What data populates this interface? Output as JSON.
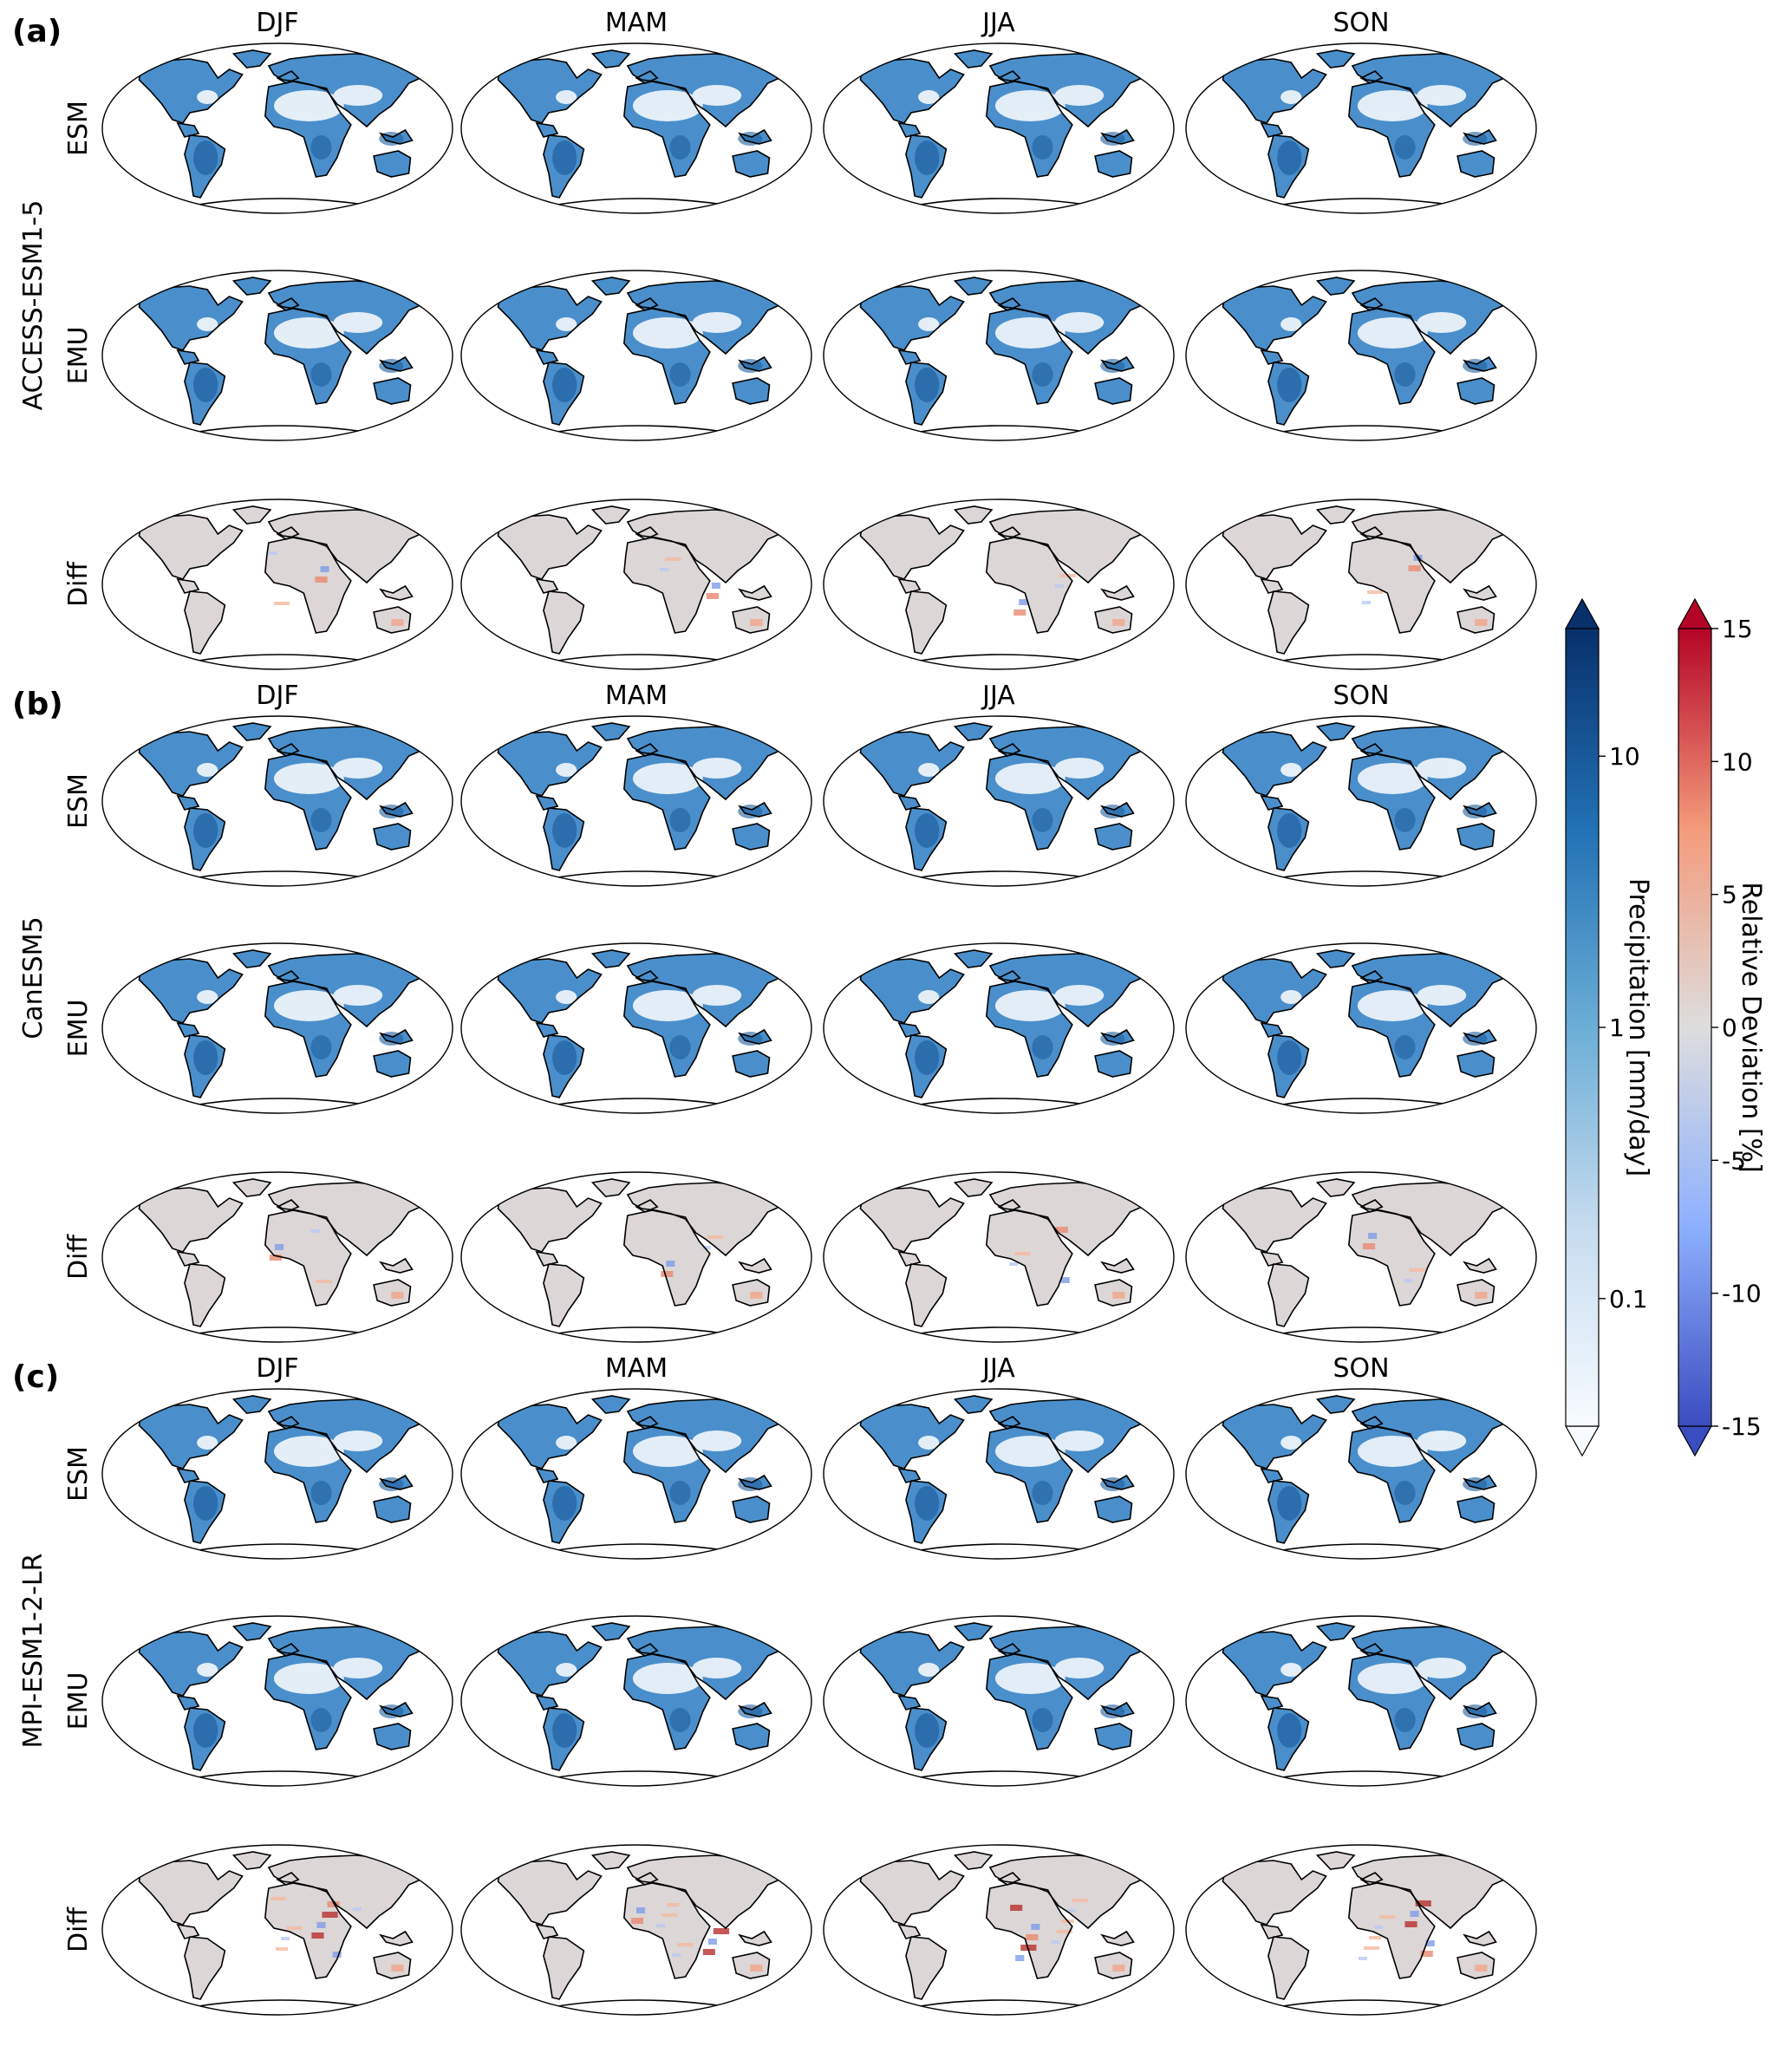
{
  "panels": [
    {
      "label": "(a)",
      "model": "ACCESS-ESM1-5"
    },
    {
      "label": "(b)",
      "model": "CanESM5"
    },
    {
      "label": "(c)",
      "model": "MPI-ESM1-2-LR"
    }
  ],
  "seasons": [
    "DJF",
    "MAM",
    "JJA",
    "SON"
  ],
  "rows": [
    "ESM",
    "EMU",
    "Diff"
  ],
  "colorbars": {
    "precipitation": {
      "label": "Precipitation [mm/day]",
      "scale": "log",
      "ticks": [
        "10",
        "1",
        "0.1"
      ],
      "extend": "both",
      "colormap": "Blues",
      "colors": [
        "#f7fbff",
        "#c6dbef",
        "#6baed6",
        "#2171b5",
        "#08306b"
      ]
    },
    "deviation": {
      "label": "Relative Deviation [%]",
      "scale": "linear",
      "ticks": [
        "15",
        "10",
        "5",
        "0",
        "-5",
        "-10",
        "-15"
      ],
      "range": [
        -15,
        15
      ],
      "extend": "both",
      "colormap": "coolwarm",
      "colors": [
        "#3b4cc0",
        "#8db0fe",
        "#dddddd",
        "#f49a7b",
        "#b40426"
      ]
    }
  },
  "map_colors": {
    "land_precip": "#4a8fcb",
    "dry_region": "#f4f8fc",
    "diff_land": "#dcd6d6",
    "coastline": "#000000"
  }
}
